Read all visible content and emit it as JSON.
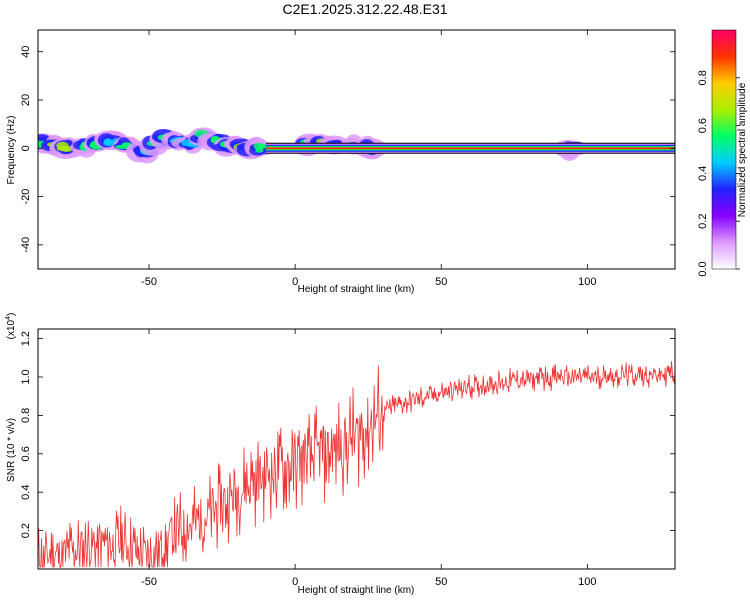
{
  "title": "C2E1.2025.312.22.48.E31",
  "chart_data": [
    {
      "type": "heatmap",
      "xlabel": "Height of straight line (km)",
      "ylabel": "Frequency (Hz)",
      "xlim": [
        -88,
        130
      ],
      "ylim": [
        -50,
        49
      ],
      "xticks": [
        -50,
        0,
        50,
        100
      ],
      "xtick_labels": [
        "-50",
        "0",
        "50",
        "100"
      ],
      "yticks": [
        -40,
        -20,
        0,
        20,
        40
      ],
      "ytick_labels": [
        "-40",
        "-20",
        "0",
        "20",
        "40"
      ],
      "grid": false,
      "colorbar": {
        "label": "Normalized spectral amplitude",
        "range": [
          0,
          1
        ],
        "ticks": [
          0.0,
          0.2,
          0.4,
          0.6,
          0.8
        ],
        "tick_labels": [
          "0.0",
          "0.2",
          "0.4",
          "0.6",
          "0.8"
        ],
        "colors": [
          "#ffffff",
          "#dd99ff",
          "#8800ff",
          "#2222ff",
          "#00ccff",
          "#00ff66",
          "#aaee00",
          "#ffcc00",
          "#ff3300",
          "#ff0066"
        ]
      },
      "dominant_frequency_hz": 0,
      "clusters": [
        {
          "x": -86,
          "y": 2,
          "amp": 0.5
        },
        {
          "x": -82,
          "y": 1,
          "amp": 0.6
        },
        {
          "x": -78,
          "y": 0.5,
          "amp": 0.6
        },
        {
          "x": -72,
          "y": 1,
          "amp": 0.5
        },
        {
          "x": -68,
          "y": 2,
          "amp": 0.5
        },
        {
          "x": -63,
          "y": 3,
          "amp": 0.4
        },
        {
          "x": -58,
          "y": 1,
          "amp": 0.5
        },
        {
          "x": -52,
          "y": -1,
          "amp": 0.4
        },
        {
          "x": -48,
          "y": 2,
          "amp": 0.5
        },
        {
          "x": -44,
          "y": 4,
          "amp": 0.5
        },
        {
          "x": -40,
          "y": 3,
          "amp": 0.4
        },
        {
          "x": -36,
          "y": 2,
          "amp": 0.4
        },
        {
          "x": -31,
          "y": 5,
          "amp": 0.5
        },
        {
          "x": -27,
          "y": 3,
          "amp": 0.5
        },
        {
          "x": -23,
          "y": 1,
          "amp": 0.5
        },
        {
          "x": -19,
          "y": 1,
          "amp": 0.6
        },
        {
          "x": -15,
          "y": 0,
          "amp": 0.5
        },
        {
          "x": -12,
          "y": 0,
          "amp": 0.5
        },
        {
          "x": 5,
          "y": 2,
          "amp": 0.5
        },
        {
          "x": 8,
          "y": 2,
          "amp": 0.6
        },
        {
          "x": 14,
          "y": 1,
          "amp": 0.4
        },
        {
          "x": 20,
          "y": 1,
          "amp": 0.4
        },
        {
          "x": 25,
          "y": 0,
          "amp": 0.4
        },
        {
          "x": 95,
          "y": 0,
          "amp": 0.5
        }
      ],
      "continuous_band": {
        "x_from": -10,
        "x_to": 130,
        "y": 0,
        "amp": 0.9
      }
    },
    {
      "type": "line",
      "xlabel": "Height of straight line (km)",
      "ylabel": "SNR (10 * v/v)",
      "y_multiplier": "(x10^4)",
      "xlim": [
        -88,
        130
      ],
      "ylim": [
        0,
        1.25
      ],
      "xticks": [
        -50,
        0,
        50,
        100
      ],
      "xtick_labels": [
        "-50",
        "0",
        "50",
        "100"
      ],
      "yticks": [
        0.2,
        0.4,
        0.6,
        0.8,
        1.0,
        1.2
      ],
      "ytick_labels": [
        "0.2",
        "0.4",
        "0.6",
        "0.8",
        "1.0",
        "1.2"
      ],
      "grid": false,
      "line_color": "#ee3333",
      "series": [
        {
          "x": [
            -88,
            -80,
            -70,
            -60,
            -50,
            -40,
            -30,
            -20,
            -10,
            0,
            10,
            20,
            30,
            40,
            50,
            60,
            70,
            80,
            90,
            100,
            110,
            120,
            130
          ],
          "values": [
            0.06,
            0.08,
            0.12,
            0.14,
            0.06,
            0.2,
            0.28,
            0.4,
            0.5,
            0.55,
            0.6,
            0.68,
            0.82,
            0.88,
            0.92,
            0.95,
            0.97,
            0.99,
            1.0,
            1.0,
            1.01,
            1.01,
            1.02
          ]
        }
      ]
    }
  ]
}
